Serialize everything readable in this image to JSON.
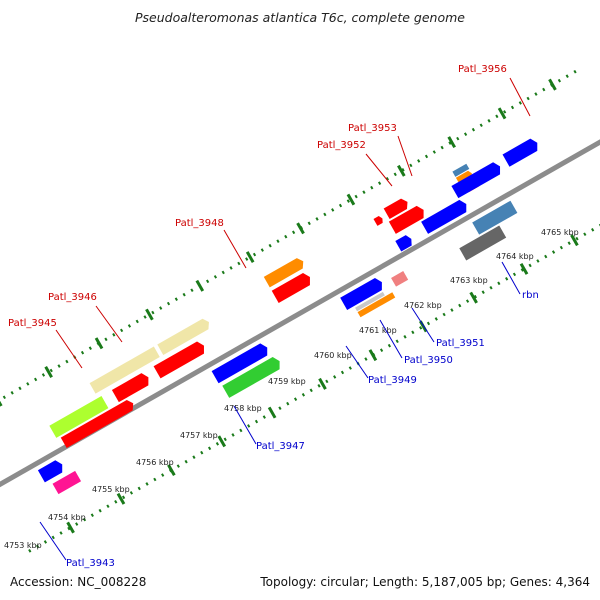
{
  "title": "Pseudoalteromonas atlantica T6c, complete genome",
  "footer": {
    "accession": "Accession: NC_008228",
    "summary": "Topology: circular; Length: 5,187,005 bp; Genes: 4,364"
  },
  "colors": {
    "top_label": "#cc0000",
    "bottom_label": "#0000cc",
    "backbone": "#8c8c8c",
    "tick_line": "#1a7a1a"
  },
  "ticks": [
    "4753 kbp",
    "4754 kbp",
    "4755 kbp",
    "4756 kbp",
    "4757 kbp",
    "4758 kbp",
    "4759 kbp",
    "4760 kbp",
    "4761 kbp",
    "4762 kbp",
    "4763 kbp",
    "4764 kbp",
    "4765 kbp"
  ],
  "labels_top": [
    "Patl_3945",
    "Patl_3946",
    "Patl_3948",
    "Patl_3952",
    "Patl_3953",
    "Patl_3956"
  ],
  "labels_bottom": [
    "Patl_3943",
    "Patl_3947",
    "Patl_3949",
    "Patl_3950",
    "Patl_3951",
    "rbn"
  ]
}
